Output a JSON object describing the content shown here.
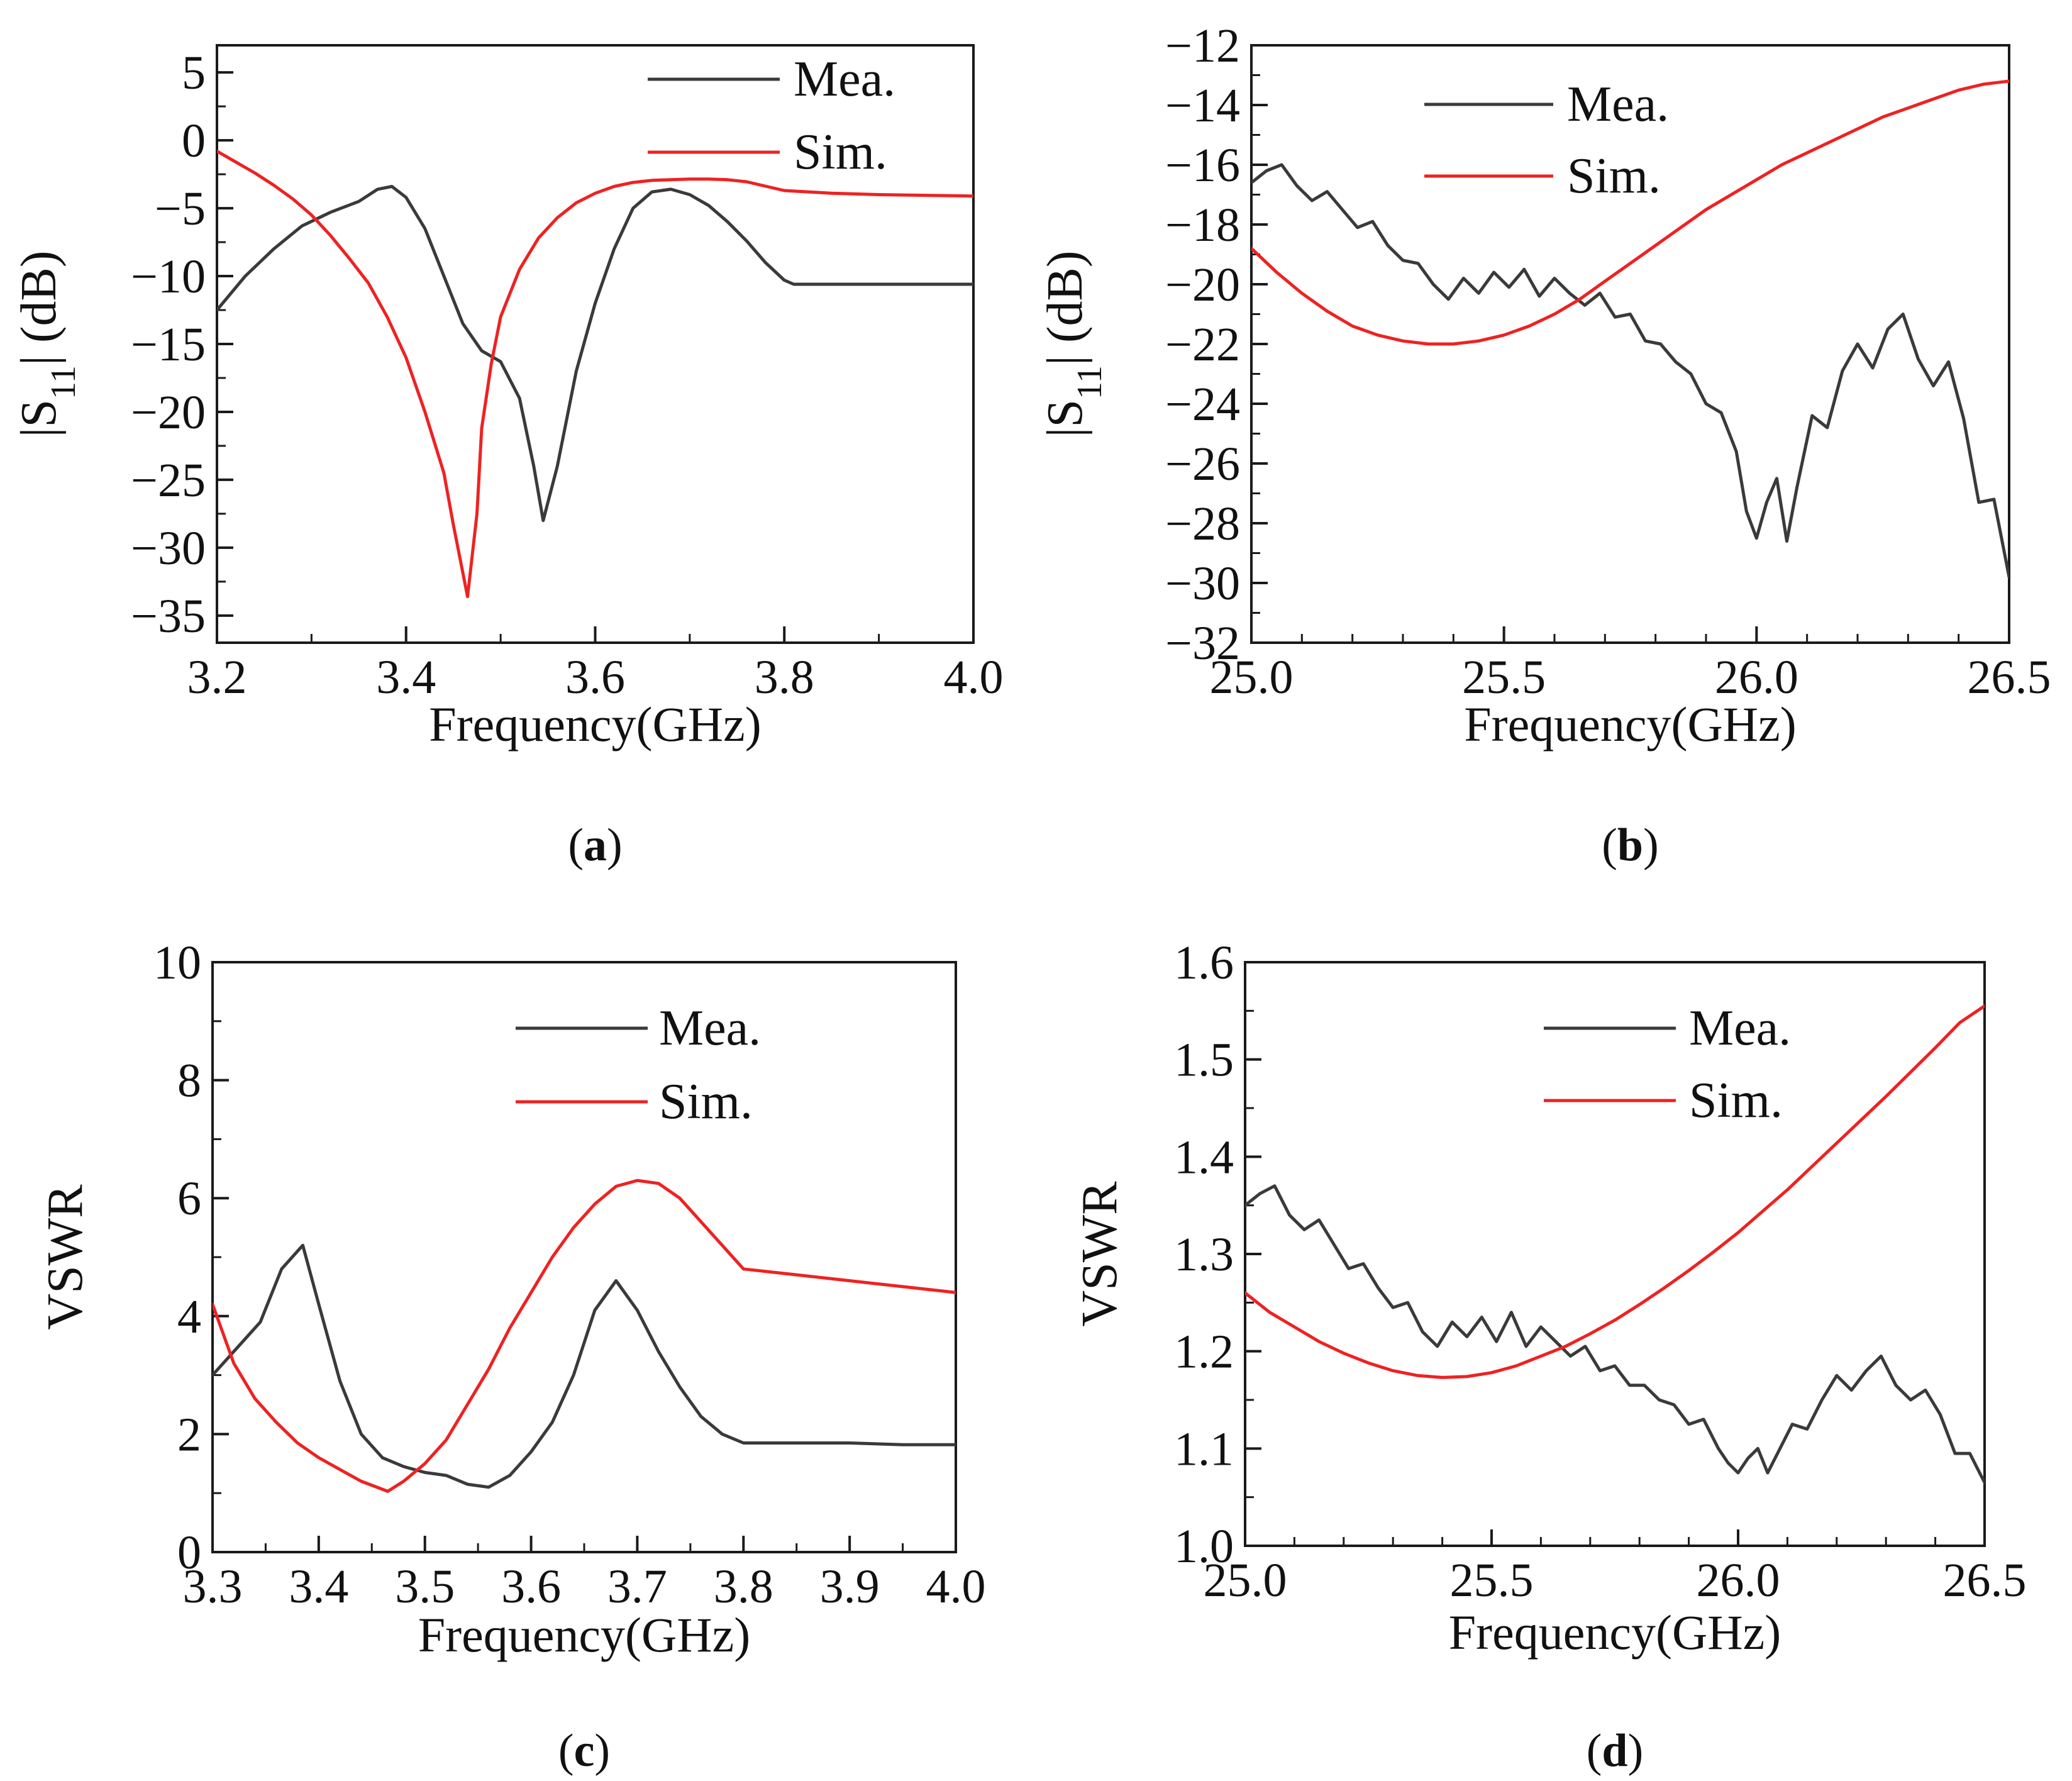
{
  "colors": {
    "measured": "#3a3a3a",
    "simulated": "#ee2222",
    "axis": "#1a1a1a"
  },
  "chart_data": [
    {
      "panel": "(a)",
      "type": "line",
      "xlabel": "Frequency(GHz)",
      "ylabel": "|S11| (dB)",
      "ylabel_parts": {
        "prefix": "|S",
        "sub": "11",
        "suffix": "| (dB)"
      },
      "xlim": [
        3.2,
        4.0
      ],
      "ylim": [
        -37,
        7
      ],
      "xticks": [
        3.2,
        3.4,
        3.6,
        3.8,
        4.0
      ],
      "xtick_labels": [
        "3.2",
        "3.4",
        "3.6",
        "3.8",
        "4.0"
      ],
      "yticks": [
        5,
        0,
        -5,
        -10,
        -15,
        -20,
        -25,
        -30,
        -35
      ],
      "ytick_labels": [
        "5",
        "0",
        "−5",
        "−10",
        "−15",
        "−20",
        "−25",
        "−30",
        "−35"
      ],
      "legend": [
        "Mea.",
        "Sim."
      ],
      "legend_position": "top-right",
      "series": [
        {
          "name": "Mea.",
          "color": "measured",
          "x": [
            3.2,
            3.23,
            3.26,
            3.29,
            3.32,
            3.35,
            3.37,
            3.385,
            3.4,
            3.42,
            3.44,
            3.46,
            3.48,
            3.5,
            3.52,
            3.535,
            3.545,
            3.56,
            3.58,
            3.6,
            3.62,
            3.64,
            3.66,
            3.68,
            3.7,
            3.72,
            3.74,
            3.76,
            3.78,
            3.8,
            3.81,
            4.0
          ],
          "y": [
            -12.5,
            -10,
            -8,
            -6.3,
            -5.3,
            -4.5,
            -3.6,
            -3.4,
            -4.2,
            -6.5,
            -10,
            -13.5,
            -15.5,
            -16.3,
            -19,
            -24,
            -28,
            -24,
            -17,
            -12,
            -8,
            -5,
            -3.8,
            -3.6,
            -4,
            -4.8,
            -6,
            -7.4,
            -9,
            -10.3,
            -10.6,
            -10.6
          ]
        },
        {
          "name": "Sim.",
          "color": "simulated",
          "x": [
            3.2,
            3.22,
            3.24,
            3.26,
            3.28,
            3.3,
            3.32,
            3.34,
            3.36,
            3.38,
            3.4,
            3.42,
            3.44,
            3.45,
            3.465,
            3.475,
            3.48,
            3.49,
            3.5,
            3.52,
            3.54,
            3.56,
            3.58,
            3.6,
            3.62,
            3.64,
            3.66,
            3.68,
            3.7,
            3.72,
            3.74,
            3.76,
            3.8,
            3.85,
            3.9,
            3.95,
            4.0
          ],
          "y": [
            -0.8,
            -1.6,
            -2.4,
            -3.3,
            -4.3,
            -5.5,
            -7,
            -8.7,
            -10.5,
            -13,
            -16,
            -20,
            -24.5,
            -28.3,
            -33.6,
            -27.5,
            -21.2,
            -16.5,
            -13,
            -9.5,
            -7.2,
            -5.7,
            -4.6,
            -3.9,
            -3.4,
            -3.1,
            -2.95,
            -2.9,
            -2.85,
            -2.85,
            -2.9,
            -3.05,
            -3.7,
            -3.9,
            -4.0,
            -4.05,
            -4.1
          ]
        }
      ]
    },
    {
      "panel": "(b)",
      "type": "line",
      "xlabel": "Frequency(GHz)",
      "ylabel": "|S11| (dB)",
      "ylabel_parts": {
        "prefix": "|S",
        "sub": "11",
        "suffix": "| (dB)"
      },
      "xlim": [
        25.0,
        26.5
      ],
      "ylim": [
        -32,
        -12
      ],
      "xticks": [
        25.0,
        25.5,
        26.0,
        26.5
      ],
      "xtick_labels": [
        "25.0",
        "25.5",
        "26.0",
        "26.5"
      ],
      "yticks": [
        -12,
        -14,
        -16,
        -18,
        -20,
        -22,
        -24,
        -26,
        -28,
        -30,
        -32
      ],
      "ytick_labels": [
        "−12",
        "−14",
        "−16",
        "−18",
        "−20",
        "−22",
        "−24",
        "−26",
        "−28",
        "−30",
        "−32"
      ],
      "legend": [
        "Mea.",
        "Sim."
      ],
      "legend_position": "top-left",
      "series": [
        {
          "name": "Mea.",
          "color": "measured",
          "x": [
            25.0,
            25.03,
            25.06,
            25.09,
            25.12,
            25.15,
            25.18,
            25.21,
            25.24,
            25.27,
            25.3,
            25.33,
            25.36,
            25.39,
            25.42,
            25.45,
            25.48,
            25.51,
            25.54,
            25.57,
            25.6,
            25.63,
            25.66,
            25.69,
            25.72,
            25.75,
            25.78,
            25.81,
            25.84,
            25.87,
            25.9,
            25.93,
            25.96,
            25.98,
            26.0,
            26.02,
            26.04,
            26.06,
            26.08,
            26.11,
            26.14,
            26.17,
            26.2,
            26.23,
            26.26,
            26.29,
            26.32,
            26.35,
            26.38,
            26.41,
            26.44,
            26.47,
            26.5
          ],
          "y": [
            -16.6,
            -16.2,
            -16.0,
            -16.7,
            -17.2,
            -16.9,
            -17.5,
            -18.1,
            -17.9,
            -18.7,
            -19.2,
            -19.3,
            -20.0,
            -20.5,
            -19.8,
            -20.3,
            -19.6,
            -20.1,
            -19.5,
            -20.4,
            -19.8,
            -20.3,
            -20.7,
            -20.3,
            -21.1,
            -21.0,
            -21.9,
            -22.0,
            -22.6,
            -23.0,
            -24.0,
            -24.3,
            -25.6,
            -27.6,
            -28.5,
            -27.3,
            -26.5,
            -28.6,
            -26.8,
            -24.4,
            -24.8,
            -22.9,
            -22.0,
            -22.8,
            -21.5,
            -21.0,
            -22.5,
            -23.4,
            -22.6,
            -24.5,
            -27.3,
            -27.2,
            -29.8
          ]
        },
        {
          "name": "Sim.",
          "color": "simulated",
          "x": [
            25.0,
            25.05,
            25.1,
            25.15,
            25.2,
            25.25,
            25.3,
            25.35,
            25.4,
            25.45,
            25.5,
            25.55,
            25.6,
            25.65,
            25.7,
            25.75,
            25.8,
            25.85,
            25.9,
            25.95,
            26.0,
            26.05,
            26.1,
            26.15,
            26.2,
            26.25,
            26.3,
            26.35,
            26.4,
            26.45,
            26.5
          ],
          "y": [
            -18.8,
            -19.6,
            -20.3,
            -20.9,
            -21.4,
            -21.7,
            -21.9,
            -22.0,
            -22.0,
            -21.9,
            -21.7,
            -21.4,
            -21.0,
            -20.5,
            -19.9,
            -19.3,
            -18.7,
            -18.1,
            -17.5,
            -17.0,
            -16.5,
            -16.0,
            -15.6,
            -15.2,
            -14.8,
            -14.4,
            -14.1,
            -13.8,
            -13.5,
            -13.3,
            -13.2
          ]
        }
      ]
    },
    {
      "panel": "(c)",
      "type": "line",
      "xlabel": "Frequency(GHz)",
      "ylabel": "VSWR",
      "xlim": [
        3.3,
        4.0
      ],
      "ylim": [
        0,
        10
      ],
      "xticks": [
        3.3,
        3.4,
        3.5,
        3.6,
        3.7,
        3.8,
        3.9,
        4.0
      ],
      "xtick_labels": [
        "3.3",
        "3.4",
        "3.5",
        "3.6",
        "3.7",
        "3.8",
        "3.9",
        "4.0"
      ],
      "yticks": [
        0,
        2,
        4,
        6,
        8,
        10
      ],
      "ytick_labels": [
        "0",
        "2",
        "4",
        "6",
        "8",
        "10"
      ],
      "legend": [
        "Mea.",
        "Sim."
      ],
      "legend_position": "top-right",
      "series": [
        {
          "name": "Mea.",
          "color": "measured",
          "x": [
            3.3,
            3.32,
            3.345,
            3.365,
            3.385,
            3.4,
            3.42,
            3.44,
            3.46,
            3.48,
            3.5,
            3.52,
            3.54,
            3.56,
            3.58,
            3.6,
            3.62,
            3.64,
            3.66,
            3.68,
            3.7,
            3.72,
            3.74,
            3.76,
            3.78,
            3.8,
            3.85,
            3.9,
            3.95,
            4.0
          ],
          "y": [
            3.0,
            3.4,
            3.9,
            4.8,
            5.2,
            4.2,
            2.9,
            2.0,
            1.6,
            1.45,
            1.35,
            1.3,
            1.15,
            1.1,
            1.3,
            1.7,
            2.2,
            3.0,
            4.1,
            4.6,
            4.1,
            3.4,
            2.8,
            2.3,
            2.0,
            1.85,
            1.85,
            1.85,
            1.82,
            1.82
          ]
        },
        {
          "name": "Sim.",
          "color": "simulated",
          "x": [
            3.3,
            3.32,
            3.34,
            3.36,
            3.38,
            3.4,
            3.42,
            3.44,
            3.465,
            3.48,
            3.5,
            3.52,
            3.54,
            3.56,
            3.58,
            3.6,
            3.62,
            3.64,
            3.66,
            3.68,
            3.7,
            3.72,
            3.74,
            3.76,
            3.78,
            3.8,
            3.85,
            3.9,
            3.95,
            4.0
          ],
          "y": [
            4.2,
            3.2,
            2.6,
            2.2,
            1.85,
            1.6,
            1.4,
            1.2,
            1.03,
            1.2,
            1.5,
            1.9,
            2.5,
            3.1,
            3.8,
            4.4,
            5.0,
            5.5,
            5.9,
            6.2,
            6.3,
            6.25,
            6.0,
            5.6,
            5.2,
            4.8,
            4.7,
            4.6,
            4.5,
            4.4
          ]
        }
      ]
    },
    {
      "panel": "(d)",
      "type": "line",
      "xlabel": "Frequency(GHz)",
      "ylabel": "VSWR",
      "xlim": [
        25.0,
        26.5
      ],
      "ylim": [
        1.0,
        1.6
      ],
      "xticks": [
        25.0,
        25.5,
        26.0,
        26.5
      ],
      "xtick_labels": [
        "25.0",
        "25.5",
        "26.0",
        "26.5"
      ],
      "yticks": [
        1.0,
        1.1,
        1.2,
        1.3,
        1.4,
        1.5,
        1.6
      ],
      "ytick_labels": [
        "1.0",
        "1.1",
        "1.2",
        "1.3",
        "1.4",
        "1.5",
        "1.6"
      ],
      "legend": [
        "Mea.",
        "Sim."
      ],
      "legend_position": "top-right",
      "series": [
        {
          "name": "Mea.",
          "color": "measured",
          "x": [
            25.0,
            25.03,
            25.06,
            25.09,
            25.12,
            25.15,
            25.18,
            25.21,
            25.24,
            25.27,
            25.3,
            25.33,
            25.36,
            25.39,
            25.42,
            25.45,
            25.48,
            25.51,
            25.54,
            25.57,
            25.6,
            25.63,
            25.66,
            25.69,
            25.72,
            25.75,
            25.78,
            25.81,
            25.84,
            25.87,
            25.9,
            25.93,
            25.96,
            25.98,
            26.0,
            26.02,
            26.04,
            26.06,
            26.08,
            26.11,
            26.14,
            26.17,
            26.2,
            26.23,
            26.26,
            26.29,
            26.32,
            26.35,
            26.38,
            26.41,
            26.44,
            26.47,
            26.5
          ],
          "y": [
            1.35,
            1.362,
            1.37,
            1.34,
            1.325,
            1.335,
            1.31,
            1.285,
            1.29,
            1.265,
            1.245,
            1.25,
            1.22,
            1.205,
            1.23,
            1.215,
            1.235,
            1.21,
            1.24,
            1.205,
            1.225,
            1.21,
            1.195,
            1.205,
            1.18,
            1.185,
            1.165,
            1.165,
            1.15,
            1.145,
            1.125,
            1.13,
            1.1,
            1.085,
            1.075,
            1.09,
            1.1,
            1.075,
            1.095,
            1.125,
            1.12,
            1.15,
            1.175,
            1.16,
            1.18,
            1.195,
            1.165,
            1.15,
            1.16,
            1.135,
            1.095,
            1.095,
            1.065
          ]
        },
        {
          "name": "Sim.",
          "color": "simulated",
          "x": [
            25.0,
            25.05,
            25.1,
            25.15,
            25.2,
            25.25,
            25.3,
            25.35,
            25.4,
            25.45,
            25.5,
            25.55,
            25.6,
            25.65,
            25.7,
            25.75,
            25.8,
            25.85,
            25.9,
            25.95,
            26.0,
            26.05,
            26.1,
            26.15,
            26.2,
            26.25,
            26.3,
            26.35,
            26.4,
            26.45,
            26.5
          ],
          "y": [
            1.26,
            1.24,
            1.225,
            1.21,
            1.198,
            1.188,
            1.18,
            1.175,
            1.173,
            1.174,
            1.178,
            1.185,
            1.195,
            1.205,
            1.218,
            1.232,
            1.248,
            1.265,
            1.283,
            1.302,
            1.322,
            1.344,
            1.366,
            1.39,
            1.414,
            1.438,
            1.462,
            1.487,
            1.512,
            1.538,
            1.555
          ]
        }
      ]
    }
  ]
}
